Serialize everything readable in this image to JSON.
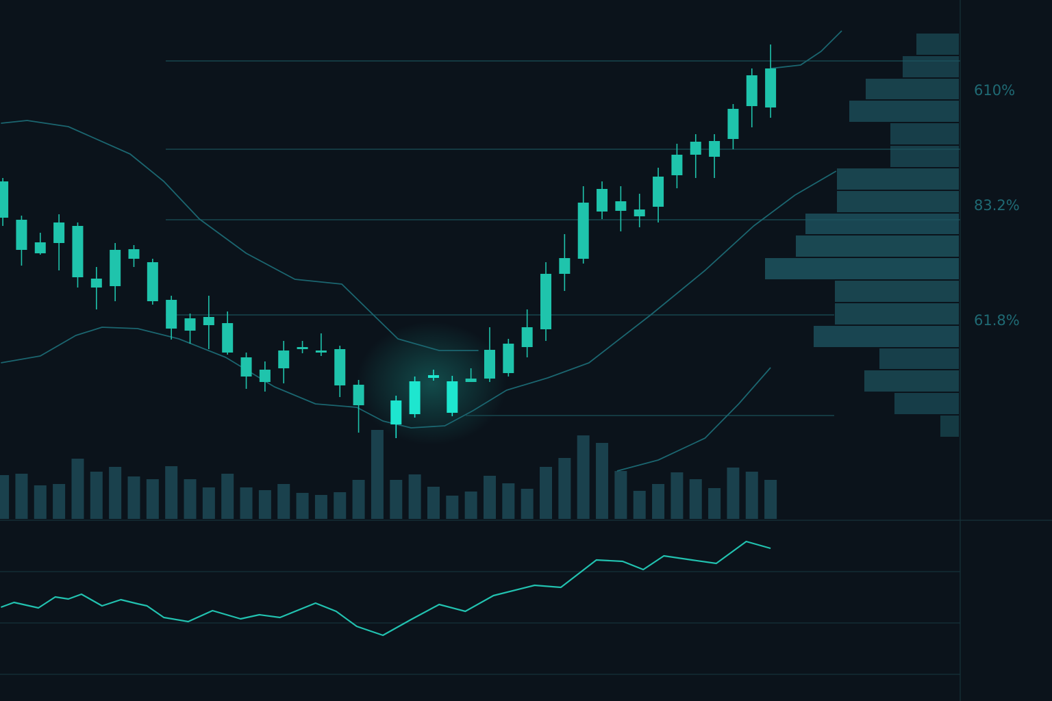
{
  "chart_data": {
    "type": "candlestick",
    "x": [
      0,
      1,
      2,
      3,
      4,
      5,
      6,
      7,
      8,
      9,
      10,
      11,
      12,
      13,
      14,
      15,
      16,
      17,
      18,
      19,
      20,
      21,
      22,
      23,
      24,
      25,
      26,
      27,
      28,
      29,
      30,
      31,
      32,
      33,
      34,
      35,
      36,
      37,
      38,
      39,
      40,
      41
    ],
    "open": [
      375,
      319,
      286,
      315,
      310,
      233,
      275,
      276,
      257,
      202,
      175,
      177,
      168,
      118,
      100,
      128,
      133,
      128,
      130,
      78,
      null,
      20,
      35,
      88,
      37,
      82,
      87,
      95,
      133,
      159,
      240,
      262,
      331,
      332,
      324,
      338,
      384,
      414,
      411,
      437,
      485,
      483
    ],
    "high": [
      380,
      325,
      300,
      327,
      315,
      250,
      285,
      282,
      262,
      208,
      182,
      208,
      185,
      125,
      112,
      142,
      142,
      153,
      135,
      85,
      null,
      62,
      90,
      100,
      91,
      102,
      162,
      145,
      188,
      257,
      298,
      368,
      375,
      368,
      357,
      395,
      430,
      444,
      444,
      488,
      540,
      575
    ],
    "low": [
      310,
      252,
      268,
      245,
      220,
      188,
      200,
      250,
      195,
      144,
      138,
      130,
      122,
      72,
      68,
      80,
      124,
      120,
      60,
      8,
      null,
      0,
      30,
      84,
      32,
      82,
      82,
      90,
      118,
      142,
      215,
      255,
      320,
      302,
      308,
      315,
      365,
      380,
      380,
      422,
      454,
      468
    ],
    "close": [
      322,
      275,
      270,
      285,
      235,
      220,
      222,
      262,
      200,
      160,
      157,
      165,
      125,
      90,
      82,
      102,
      130,
      125,
      77,
      48,
      null,
      55,
      83,
      92,
      83,
      87,
      129,
      138,
      162,
      240,
      263,
      344,
      364,
      346,
      334,
      382,
      414,
      433,
      434,
      481,
      530,
      540
    ],
    "xlim": [
      -0.15,
      51.2
    ],
    "ylim": [
      0,
      640
    ],
    "color": "#1fc4ac",
    "highlight_color": "#1ee6cf",
    "volume": {
      "values": [
        64,
        66,
        49,
        51,
        88,
        69,
        76,
        62,
        58,
        77,
        58,
        46,
        66,
        46,
        42,
        51,
        38,
        35,
        39,
        57,
        130,
        57,
        65,
        47,
        34,
        40,
        63,
        52,
        44,
        76,
        89,
        122,
        111,
        70,
        41,
        51,
        68,
        58,
        45,
        75,
        69,
        57
      ],
      "ylim": [
        0,
        130
      ],
      "color": "#1d4a56"
    },
    "overlays": [
      {
        "x": [
          -0.1,
          1.3,
          3.5,
          6.8,
          8.6,
          10.5,
          13.0,
          15.6,
          18.1,
          19.6,
          21.1,
          23.3,
          25.4
        ],
        "values": [
          460,
          464,
          455,
          415,
          375,
          320,
          270,
          232,
          225,
          185,
          145,
          128,
          128
        ]
      },
      {
        "x": [
          -0.1,
          2.0,
          3.9,
          5.3,
          7.2,
          9.4,
          11.9,
          14.5,
          16.7,
          18.9,
          20.3,
          21.8,
          23.6,
          25.1,
          26.9,
          29.1,
          31.3,
          34.6,
          37.5,
          40.1,
          42.3,
          44.5
        ],
        "values": [
          110,
          120,
          150,
          162,
          160,
          145,
          118,
          75,
          50,
          45,
          25,
          15,
          18,
          40,
          70,
          88,
          110,
          180,
          245,
          310,
          355,
          390
        ]
      },
      {
        "x": [
          41.0,
          42.6,
          43.7,
          44.8
        ],
        "values": [
          540,
          545,
          565,
          595
        ]
      },
      {
        "x": [
          32.8,
          35.0,
          37.5,
          39.3,
          41.0
        ],
        "values": [
          -48,
          -32,
          0,
          50,
          103
        ]
      }
    ],
    "overlay_color": "#1b6670",
    "levels": [
      551,
      422,
      319,
      180,
      33
    ],
    "level_color": "#17474f",
    "profile": {
      "bins": [
        592,
        559,
        526,
        494,
        461,
        428,
        395,
        362,
        329,
        297,
        264,
        231,
        198,
        165,
        132,
        100,
        67,
        34,
        1
      ],
      "values": [
        62,
        82,
        136,
        160,
        100,
        100,
        178,
        178,
        224,
        238,
        283,
        181,
        181,
        212,
        116,
        138,
        94,
        27
      ],
      "xlim": [
        0,
        300
      ],
      "color": "#1e5662"
    },
    "annotations": [
      "610%",
      "83.2%",
      "61.8%"
    ],
    "rsi": {
      "x": [
        -0.1,
        0.6,
        1.9,
        2.8,
        3.5,
        4.2,
        5.3,
        6.3,
        7.2,
        7.7,
        8.6,
        9.9,
        11.2,
        12.7,
        13.7,
        14.8,
        16.7,
        17.8,
        18.9,
        20.3,
        21.8,
        23.3,
        24.7,
        26.2,
        28.4,
        29.8,
        31.7,
        33.1,
        34.2,
        35.3,
        36.8,
        38.1,
        39.7,
        41.0
      ],
      "values": [
        49.2,
        52,
        48.8,
        55.2,
        54,
        56.8,
        50,
        53.6,
        51.2,
        50,
        43.2,
        40.8,
        47.2,
        42.4,
        44.8,
        43.2,
        51.6,
        46.8,
        38,
        32.8,
        42,
        50.8,
        46.8,
        56,
        62,
        60.8,
        76.8,
        76,
        71.2,
        79.2,
        76.8,
        74.8,
        87.6,
        83.6
      ],
      "ylim": [
        0,
        100
      ],
      "yticks": [
        70,
        40,
        10
      ],
      "color": "#22c2b0"
    }
  }
}
